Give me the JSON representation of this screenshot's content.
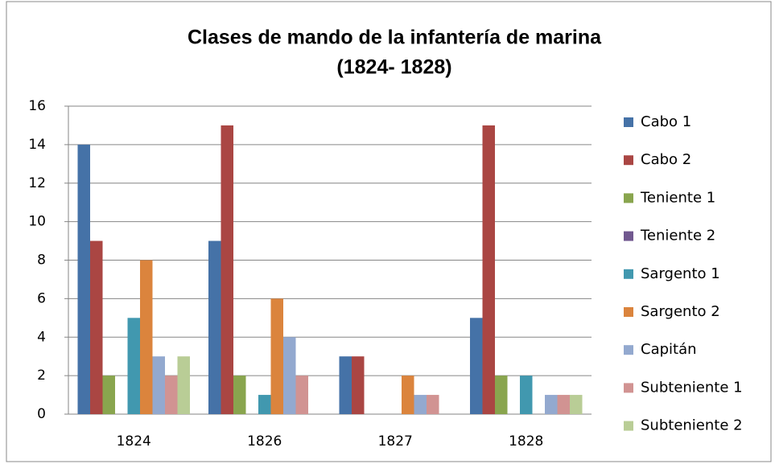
{
  "chart_data": {
    "type": "bar",
    "title": [
      "Clases de mando de la infantería de marina",
      "(1824- 1828)"
    ],
    "categories": [
      "1824",
      "1826",
      "1827",
      "1828"
    ],
    "series": [
      {
        "name": "Cabo 1",
        "color": "#4572a7",
        "values": [
          14,
          9,
          3,
          5
        ]
      },
      {
        "name": "Cabo 2",
        "color": "#aa4643",
        "values": [
          9,
          15,
          3,
          15
        ]
      },
      {
        "name": "Teniente 1",
        "color": "#89a54e",
        "values": [
          2,
          2,
          0,
          2
        ]
      },
      {
        "name": "Teniente 2",
        "color": "#71588f",
        "values": [
          0,
          0,
          0,
          0
        ]
      },
      {
        "name": "Sargento 1",
        "color": "#4198af",
        "values": [
          5,
          1,
          0,
          2
        ]
      },
      {
        "name": "Sargento 2",
        "color": "#db843d",
        "values": [
          8,
          6,
          2,
          0
        ]
      },
      {
        "name": "Capitán",
        "color": "#93a9cf",
        "values": [
          3,
          4,
          1,
          1
        ]
      },
      {
        "name": "Subteniente 1",
        "color": "#d19392",
        "values": [
          2,
          2,
          1,
          1
        ]
      },
      {
        "name": "Subteniente 2",
        "color": "#b9cd96",
        "values": [
          3,
          0,
          0,
          1
        ]
      }
    ],
    "ylim": [
      0,
      16
    ],
    "yticks": [
      0,
      2,
      4,
      6,
      8,
      10,
      12,
      14,
      16
    ],
    "grid": true,
    "legend": "right"
  }
}
